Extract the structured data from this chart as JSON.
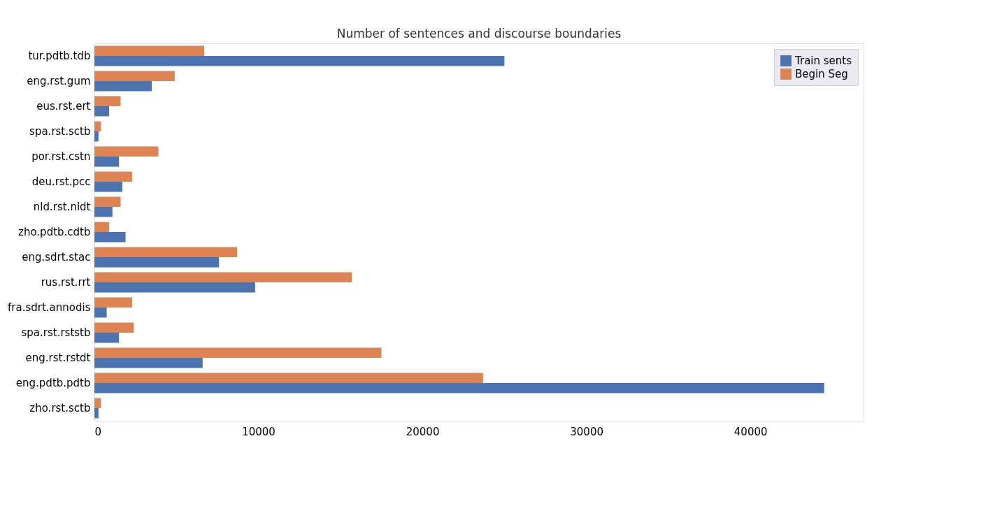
{
  "chart_data": {
    "type": "bar",
    "orientation": "horizontal",
    "title": "Number of sentences and discourse boundaries",
    "categories": [
      "tur.pdtb.tdb",
      "eng.rst.gum",
      "eus.rst.ert",
      "spa.rst.sctb",
      "por.rst.cstn",
      "deu.rst.pcc",
      "nld.rst.nldt",
      "zho.pdtb.cdtb",
      "eng.sdrt.stac",
      "rus.rst.rrt",
      "fra.sdrt.annodis",
      "spa.rst.rststb",
      "eng.rst.rstdt",
      "eng.pdtb.pdtb",
      "zho.rst.sctb"
    ],
    "series": [
      {
        "name": "Train sents",
        "color": "#4c72b0",
        "values": [
          25000,
          3500,
          900,
          250,
          1500,
          1700,
          1100,
          1900,
          7600,
          9800,
          750,
          1500,
          6600,
          44500,
          250
        ]
      },
      {
        "name": "Begin Seg",
        "color": "#dd8452",
        "values": [
          6700,
          4900,
          1600,
          400,
          3900,
          2300,
          1600,
          900,
          8700,
          15700,
          2300,
          2400,
          17500,
          23700,
          400
        ]
      }
    ],
    "xlim": [
      0,
      46900
    ],
    "xticks": [
      0,
      10000,
      20000,
      30000,
      40000
    ],
    "grid": false,
    "legend": "top right"
  }
}
